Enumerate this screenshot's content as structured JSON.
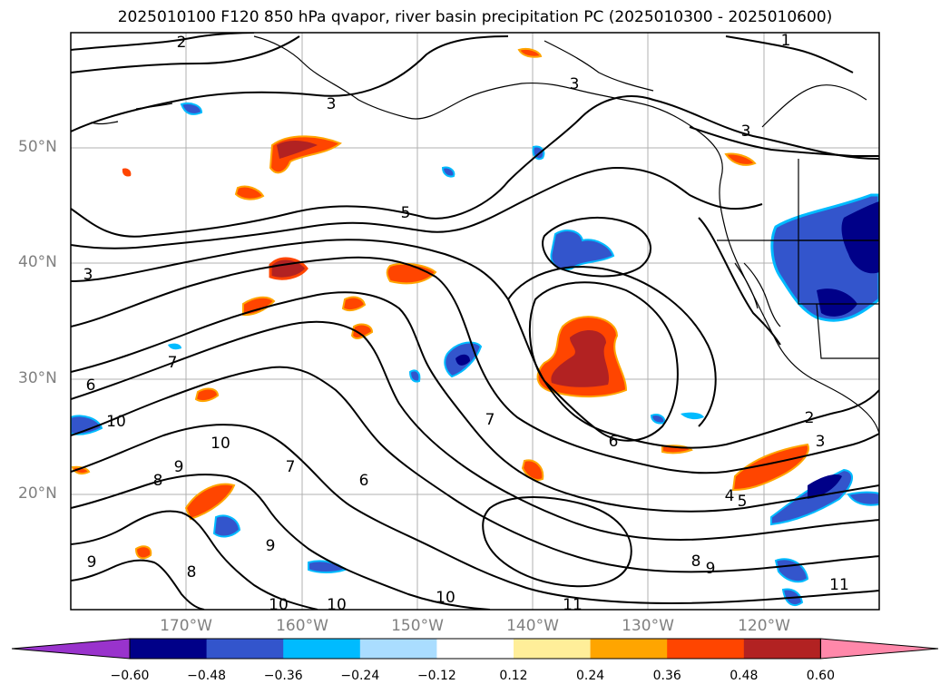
{
  "title": "2025010100 F120 850 hPa qvapor, river basin precipitation PC (2025010300 - 2025010600)",
  "lat_labels": [
    "50°N",
    "40°N",
    "30°N",
    "20°N"
  ],
  "lon_labels": [
    "170°W",
    "160°W",
    "150°W",
    "140°W",
    "130°W",
    "120°W"
  ],
  "contour_labels": [
    "2",
    "1",
    "3",
    "3",
    "3",
    "5",
    "3",
    "6",
    "7",
    "10",
    "10",
    "9",
    "8",
    "7",
    "6",
    "2",
    "3",
    "4",
    "5",
    "6",
    "7",
    "9",
    "8",
    "9",
    "8",
    "10",
    "10",
    "10",
    "11",
    "11",
    "9"
  ],
  "colorbar": {
    "tick_labels": [
      "−0.60",
      "−0.48",
      "−0.36",
      "−0.24",
      "−0.12",
      "0.12",
      "0.24",
      "0.36",
      "0.48",
      "0.60"
    ],
    "colors": [
      "#9933cc",
      "#000088",
      "#3355cc",
      "#00bbff",
      "#aaddff",
      "#ffffff",
      "#ffee99",
      "#ffa500",
      "#ff4500",
      "#b22222",
      "#ff88aa"
    ]
  },
  "colors": {
    "land_line": "#000000",
    "grid": "#b0b0b0",
    "label_gray": "#808080"
  }
}
